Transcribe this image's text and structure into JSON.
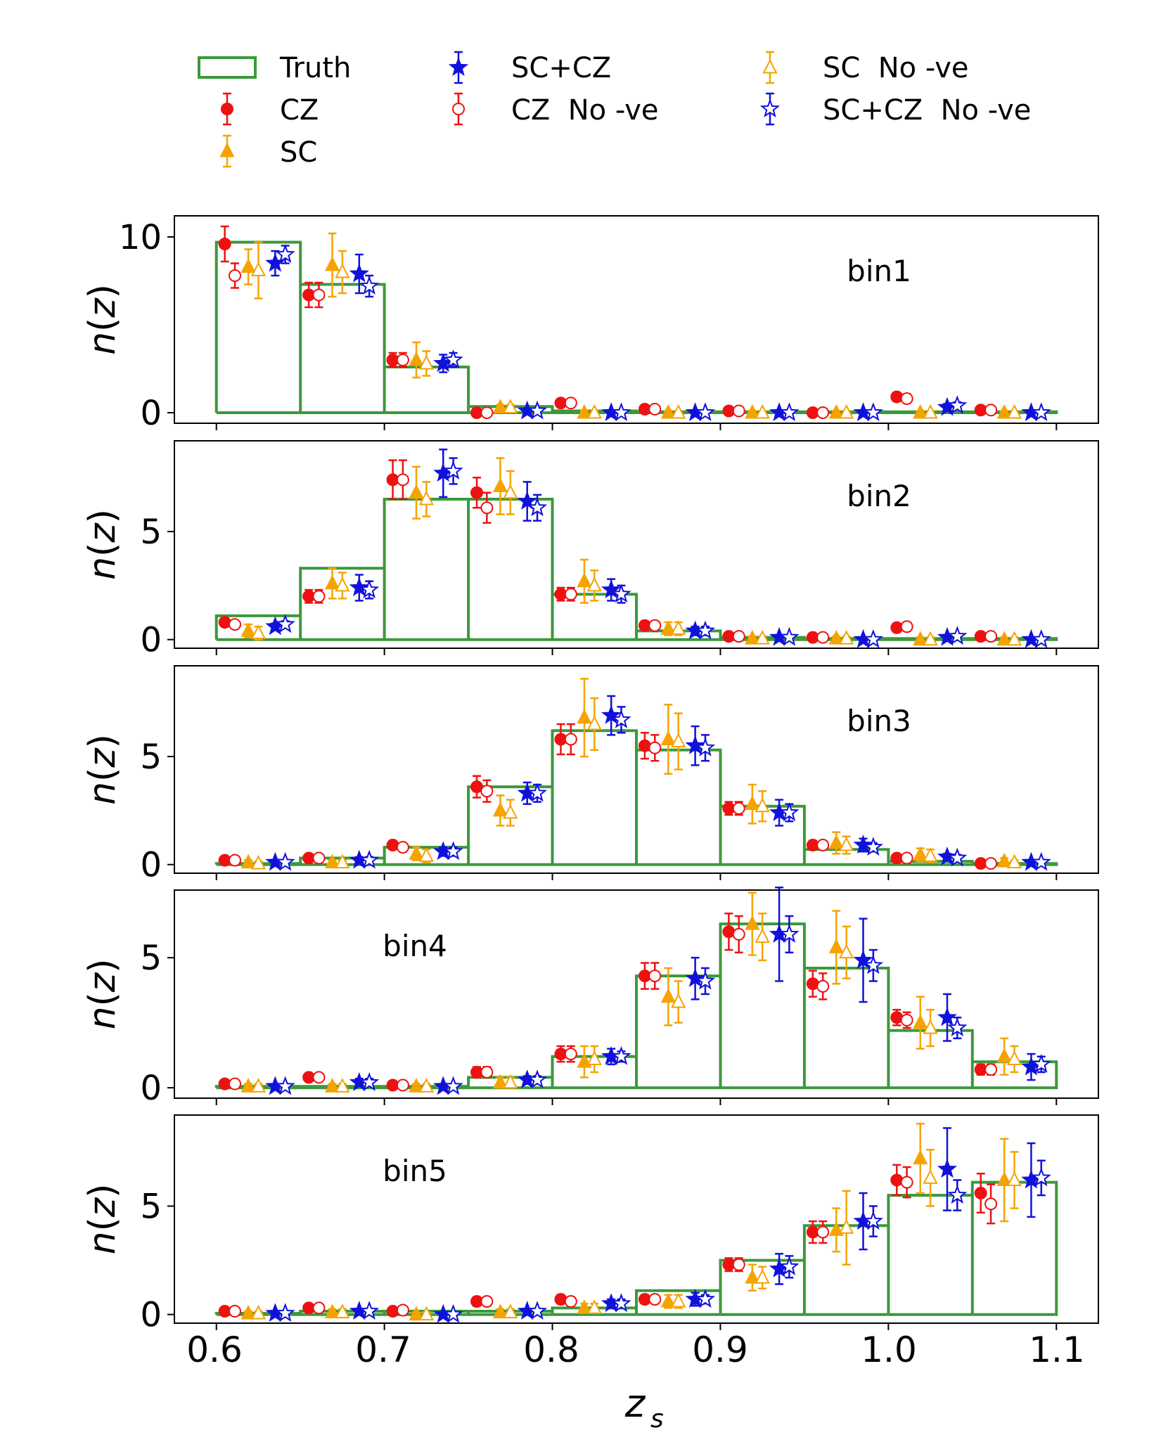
{
  "legend": {
    "items": [
      {
        "key": "truth",
        "label": "Truth"
      },
      {
        "key": "cz",
        "label": "CZ"
      },
      {
        "key": "sc",
        "label": "SC"
      },
      {
        "key": "sccz",
        "label": "SC+CZ"
      },
      {
        "key": "cz_nove",
        "label": "CZ  No -ve"
      },
      {
        "key": "sc_nove",
        "label": "SC  No -ve"
      },
      {
        "key": "sccz_nove",
        "label": "SC+CZ  No -ve"
      }
    ]
  },
  "chart_data": {
    "type": "histogram-errorbar",
    "xlabel": "z_s",
    "ylabel": "n(z)",
    "xlim": [
      0.575,
      1.125
    ],
    "xticks": [
      "0.6",
      "0.7",
      "0.8",
      "0.9",
      "1.0",
      "1.1"
    ],
    "xtick_values": [
      0.6,
      0.7,
      0.8,
      0.9,
      1.0,
      1.1
    ],
    "bin_edges": [
      0.6,
      0.65,
      0.7,
      0.75,
      0.8,
      0.85,
      0.9,
      0.95,
      1.0,
      1.05,
      1.1
    ],
    "series_order": [
      "cz",
      "cz_nove",
      "sc",
      "sc_nove",
      "sccz",
      "sccz_nove"
    ],
    "series_offsets": [
      0.005,
      0.011,
      0.019,
      0.025,
      0.035,
      0.041
    ],
    "colors": {
      "truth": "#3a9a3a",
      "cz": "#ee1111",
      "sc": "#f5a300",
      "sccz": "#1111dd"
    },
    "panels": [
      {
        "label": "bin1",
        "ylim": [
          -0.6,
          11.2
        ],
        "yticks": [
          0,
          10
        ],
        "truth": [
          9.7,
          7.3,
          2.6,
          0.35,
          0.1,
          0.05,
          0.05,
          0.05,
          0.05,
          0.05
        ],
        "series": {
          "cz": {
            "values": [
              9.6,
              6.7,
              3.0,
              0.0,
              0.55,
              0.2,
              0.1,
              0.0,
              0.9,
              0.15
            ],
            "errors": [
              1.0,
              0.7,
              0.4,
              0.15,
              0.2,
              0.15,
              0.15,
              0.1,
              0.25,
              0.15
            ]
          },
          "cz_nove": {
            "values": [
              7.8,
              6.7,
              3.0,
              0.0,
              0.55,
              0.2,
              0.1,
              0.0,
              0.8,
              0.15
            ],
            "errors": [
              0.7,
              0.7,
              0.4,
              0.15,
              0.2,
              0.15,
              0.15,
              0.1,
              0.25,
              0.15
            ]
          },
          "sc": {
            "values": [
              8.3,
              8.4,
              3.0,
              0.3,
              0.0,
              0.0,
              0.0,
              0.0,
              0.0,
              0.0
            ],
            "errors": [
              1.0,
              1.8,
              1.0,
              0.15,
              0.1,
              0.1,
              0.1,
              0.1,
              0.1,
              0.1
            ]
          },
          "sc_nove": {
            "values": [
              8.1,
              8.0,
              2.8,
              0.3,
              0.0,
              0.0,
              0.0,
              0.0,
              0.0,
              0.0
            ],
            "errors": [
              1.6,
              1.2,
              0.7,
              0.15,
              0.1,
              0.1,
              0.1,
              0.1,
              0.1,
              0.1
            ]
          },
          "sccz": {
            "values": [
              8.5,
              7.9,
              2.8,
              0.1,
              0.0,
              0.0,
              0.0,
              0.0,
              0.3,
              0.0
            ],
            "errors": [
              0.7,
              1.1,
              0.5,
              0.1,
              0.1,
              0.1,
              0.1,
              0.1,
              0.2,
              0.1
            ]
          },
          "sccz_nove": {
            "values": [
              9.0,
              7.2,
              3.0,
              0.1,
              0.0,
              0.0,
              0.0,
              0.0,
              0.4,
              0.0
            ],
            "errors": [
              0.5,
              0.6,
              0.4,
              0.1,
              0.1,
              0.1,
              0.1,
              0.1,
              0.2,
              0.1
            ]
          }
        }
      },
      {
        "label": "bin2",
        "ylim": [
          -0.4,
          9.2
        ],
        "yticks": [
          0,
          5
        ],
        "truth": [
          1.1,
          3.3,
          6.5,
          6.5,
          2.1,
          0.4,
          0.1,
          0.05,
          0.05,
          0.05
        ],
        "series": {
          "cz": {
            "values": [
              0.8,
              2.0,
              7.4,
              6.8,
              2.1,
              0.65,
              0.15,
              0.1,
              0.55,
              0.15
            ],
            "errors": [
              0.15,
              0.3,
              0.9,
              0.7,
              0.3,
              0.2,
              0.1,
              0.1,
              0.2,
              0.1
            ]
          },
          "cz_nove": {
            "values": [
              0.7,
              2.0,
              7.4,
              6.1,
              2.1,
              0.65,
              0.15,
              0.1,
              0.6,
              0.15
            ],
            "errors": [
              0.15,
              0.3,
              0.9,
              0.7,
              0.3,
              0.2,
              0.1,
              0.1,
              0.2,
              0.1
            ]
          },
          "sc": {
            "values": [
              0.4,
              2.6,
              6.8,
              7.1,
              2.7,
              0.5,
              0.05,
              0.05,
              0.0,
              0.0
            ],
            "errors": [
              0.3,
              0.7,
              1.2,
              1.3,
              1.0,
              0.3,
              0.1,
              0.1,
              0.1,
              0.1
            ]
          },
          "sc_nove": {
            "values": [
              0.3,
              2.5,
              6.5,
              6.8,
              2.5,
              0.5,
              0.05,
              0.05,
              0.0,
              0.0
            ],
            "errors": [
              0.3,
              0.6,
              0.8,
              1.0,
              0.7,
              0.3,
              0.1,
              0.1,
              0.1,
              0.1
            ]
          },
          "sccz": {
            "values": [
              0.6,
              2.4,
              7.7,
              6.4,
              2.3,
              0.4,
              0.1,
              0.0,
              0.1,
              0.0
            ],
            "errors": [
              0.15,
              0.6,
              1.1,
              0.9,
              0.5,
              0.2,
              0.1,
              0.1,
              0.1,
              0.1
            ]
          },
          "sccz_nove": {
            "values": [
              0.7,
              2.3,
              7.8,
              6.1,
              2.1,
              0.4,
              0.1,
              0.0,
              0.15,
              0.0
            ],
            "errors": [
              0.15,
              0.4,
              0.6,
              0.6,
              0.4,
              0.2,
              0.1,
              0.1,
              0.1,
              0.1
            ]
          }
        }
      },
      {
        "label": "bin3",
        "ylim": [
          -0.4,
          9.2
        ],
        "yticks": [
          0,
          5
        ],
        "truth": [
          0.05,
          0.3,
          0.8,
          3.6,
          6.2,
          5.3,
          2.7,
          0.7,
          0.15,
          0.05
        ],
        "series": {
          "cz": {
            "values": [
              0.2,
              0.3,
              0.9,
              3.6,
              5.8,
              5.5,
              2.6,
              0.9,
              0.3,
              0.05
            ],
            "errors": [
              0.1,
              0.15,
              0.2,
              0.5,
              0.7,
              0.6,
              0.3,
              0.2,
              0.15,
              0.1
            ]
          },
          "cz_nove": {
            "values": [
              0.2,
              0.3,
              0.8,
              3.4,
              5.8,
              5.4,
              2.6,
              0.9,
              0.3,
              0.05
            ],
            "errors": [
              0.1,
              0.15,
              0.2,
              0.5,
              0.7,
              0.6,
              0.3,
              0.2,
              0.15,
              0.1
            ]
          },
          "sc": {
            "values": [
              0.1,
              0.1,
              0.5,
              2.5,
              6.8,
              5.8,
              2.8,
              1.0,
              0.45,
              0.15
            ],
            "errors": [
              0.1,
              0.1,
              0.3,
              0.7,
              1.8,
              1.6,
              0.9,
              0.5,
              0.3,
              0.15
            ]
          },
          "sc_nove": {
            "values": [
              0.05,
              0.1,
              0.4,
              2.4,
              6.5,
              5.7,
              2.7,
              0.9,
              0.4,
              0.1
            ],
            "errors": [
              0.1,
              0.1,
              0.3,
              0.6,
              1.2,
              1.3,
              0.7,
              0.4,
              0.3,
              0.1
            ]
          },
          "sccz": {
            "values": [
              0.1,
              0.2,
              0.6,
              3.3,
              6.9,
              5.5,
              2.4,
              0.9,
              0.35,
              0.1
            ],
            "errors": [
              0.1,
              0.15,
              0.2,
              0.5,
              0.9,
              0.9,
              0.6,
              0.3,
              0.15,
              0.1
            ]
          },
          "sccz_nove": {
            "values": [
              0.1,
              0.2,
              0.6,
              3.3,
              6.7,
              5.4,
              2.4,
              0.8,
              0.3,
              0.1
            ],
            "errors": [
              0.1,
              0.15,
              0.2,
              0.4,
              0.6,
              0.6,
              0.4,
              0.2,
              0.15,
              0.1
            ]
          }
        }
      },
      {
        "label": "bin4",
        "ylim": [
          -0.4,
          7.6
        ],
        "yticks": [
          0,
          5
        ],
        "truth": [
          0.05,
          0.05,
          0.05,
          0.4,
          1.2,
          4.3,
          6.3,
          4.6,
          2.2,
          1.0
        ],
        "series": {
          "cz": {
            "values": [
              0.15,
              0.4,
              0.1,
              0.6,
              1.3,
              4.3,
              6.0,
              4.0,
              2.7,
              0.7
            ],
            "errors": [
              0.1,
              0.15,
              0.1,
              0.2,
              0.3,
              0.5,
              0.7,
              0.5,
              0.3,
              0.2
            ]
          },
          "cz_nove": {
            "values": [
              0.15,
              0.4,
              0.1,
              0.6,
              1.3,
              4.3,
              5.9,
              3.9,
              2.6,
              0.7
            ],
            "errors": [
              0.1,
              0.15,
              0.1,
              0.2,
              0.3,
              0.5,
              0.7,
              0.5,
              0.3,
              0.2
            ]
          },
          "sc": {
            "values": [
              0.05,
              0.05,
              0.05,
              0.2,
              1.0,
              3.5,
              6.3,
              5.4,
              2.5,
              1.2
            ],
            "errors": [
              0.1,
              0.1,
              0.1,
              0.2,
              0.6,
              1.1,
              1.2,
              1.4,
              1.0,
              0.7
            ]
          },
          "sc_nove": {
            "values": [
              0.05,
              0.05,
              0.05,
              0.2,
              1.1,
              3.3,
              5.8,
              5.2,
              2.3,
              1.1
            ],
            "errors": [
              0.1,
              0.1,
              0.1,
              0.2,
              0.5,
              0.8,
              0.9,
              1.0,
              0.7,
              0.5
            ]
          },
          "sccz": {
            "values": [
              0.05,
              0.2,
              0.05,
              0.3,
              1.2,
              4.2,
              5.9,
              4.9,
              2.7,
              0.8
            ],
            "errors": [
              0.1,
              0.15,
              0.1,
              0.15,
              0.3,
              0.8,
              1.8,
              1.6,
              0.9,
              0.5
            ]
          },
          "sccz_nove": {
            "values": [
              0.05,
              0.2,
              0.05,
              0.3,
              1.2,
              4.1,
              5.9,
              4.7,
              2.3,
              0.9
            ],
            "errors": [
              0.1,
              0.15,
              0.1,
              0.15,
              0.2,
              0.5,
              0.7,
              0.6,
              0.4,
              0.3
            ]
          }
        }
      },
      {
        "label": "bin5",
        "ylim": [
          -0.4,
          9.2
        ],
        "yticks": [
          0,
          5
        ],
        "truth": [
          0.05,
          0.15,
          0.15,
          0.15,
          0.3,
          1.1,
          2.5,
          4.1,
          5.5,
          6.1
        ],
        "series": {
          "cz": {
            "values": [
              0.15,
              0.3,
              0.15,
              0.6,
              0.7,
              0.7,
              2.3,
              3.8,
              6.2,
              5.6
            ],
            "errors": [
              0.1,
              0.15,
              0.1,
              0.2,
              0.2,
              0.2,
              0.3,
              0.5,
              0.7,
              0.9
            ]
          },
          "cz_nove": {
            "values": [
              0.15,
              0.3,
              0.2,
              0.6,
              0.6,
              0.7,
              2.3,
              3.8,
              6.1,
              5.1
            ],
            "errors": [
              0.1,
              0.15,
              0.1,
              0.2,
              0.2,
              0.2,
              0.3,
              0.5,
              0.7,
              0.9
            ]
          },
          "sc": {
            "values": [
              0.05,
              0.1,
              0.0,
              0.1,
              0.3,
              0.6,
              1.7,
              3.9,
              7.2,
              6.2
            ],
            "errors": [
              0.1,
              0.15,
              0.1,
              0.15,
              0.2,
              0.3,
              0.6,
              1.0,
              1.6,
              1.9
            ]
          },
          "sc_nove": {
            "values": [
              0.05,
              0.1,
              0.0,
              0.1,
              0.3,
              0.6,
              1.7,
              4.0,
              6.3,
              6.2
            ],
            "errors": [
              0.1,
              0.15,
              0.1,
              0.15,
              0.2,
              0.3,
              0.5,
              1.7,
              1.3,
              1.3
            ]
          },
          "sccz": {
            "values": [
              0.05,
              0.15,
              0.0,
              0.15,
              0.5,
              0.7,
              2.1,
              4.3,
              6.7,
              6.2
            ],
            "errors": [
              0.1,
              0.1,
              0.1,
              0.1,
              0.2,
              0.3,
              0.7,
              1.3,
              1.9,
              1.7
            ]
          },
          "sccz_nove": {
            "values": [
              0.05,
              0.15,
              0.0,
              0.15,
              0.5,
              0.7,
              2.2,
              4.3,
              5.5,
              6.3
            ],
            "errors": [
              0.1,
              0.1,
              0.1,
              0.1,
              0.2,
              0.2,
              0.5,
              0.7,
              0.7,
              0.8
            ]
          }
        }
      }
    ]
  }
}
